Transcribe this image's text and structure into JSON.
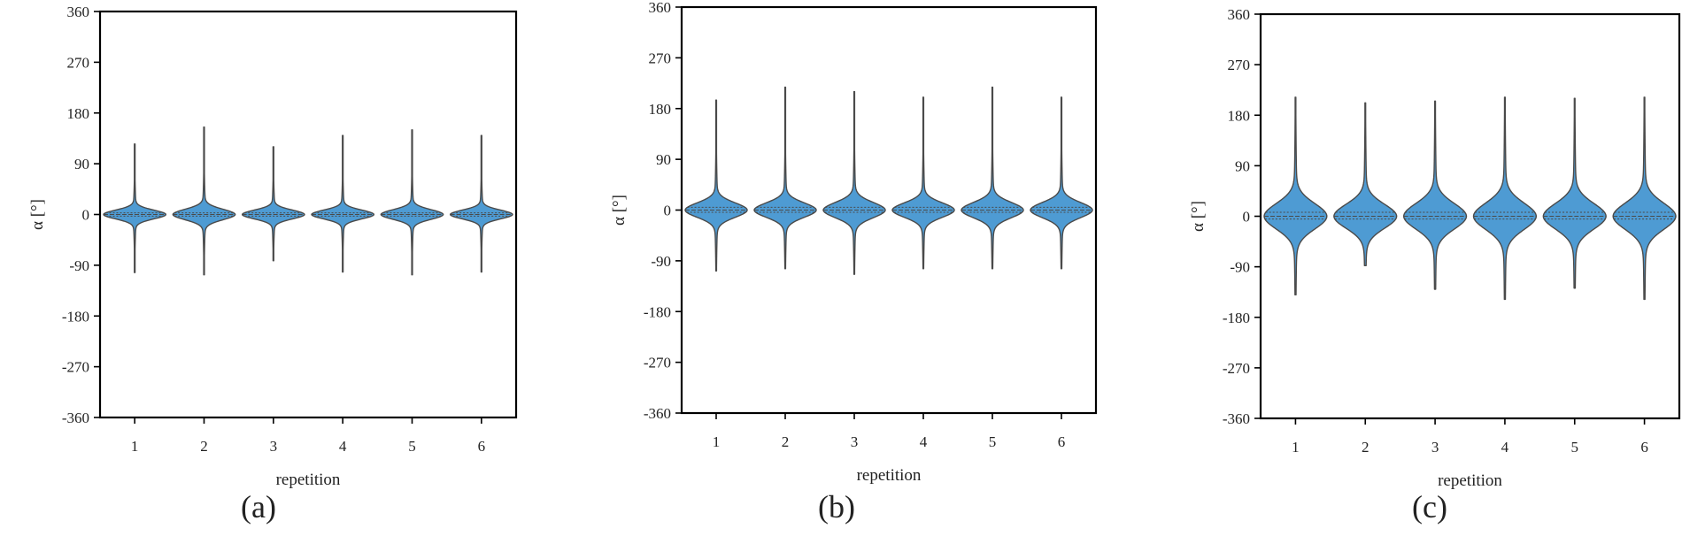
{
  "colors": {
    "violin_fill": "#4e9bd3",
    "violin_edge": "#4a4a4a",
    "axes": "#000000"
  },
  "chart_data": [
    {
      "type": "violin",
      "panel_label": "(a)",
      "xlabel": "repetition",
      "ylabel": "α [°]",
      "categories": [
        "1",
        "2",
        "3",
        "4",
        "5",
        "6"
      ],
      "yticks": [
        "-360",
        "-270",
        "-180",
        "-90",
        "0",
        "90",
        "180",
        "270",
        "360"
      ],
      "ylim": [
        -360,
        360
      ],
      "series": [
        {
          "category": "1",
          "min": -103,
          "max": 125,
          "median": 0,
          "q1": -3,
          "q3": 3,
          "spread": 11
        },
        {
          "category": "2",
          "min": -107,
          "max": 155,
          "median": 0,
          "q1": -3,
          "q3": 3,
          "spread": 13
        },
        {
          "category": "3",
          "min": -82,
          "max": 120,
          "median": 0,
          "q1": -3,
          "q3": 3,
          "spread": 11
        },
        {
          "category": "4",
          "min": -102,
          "max": 140,
          "median": 0,
          "q1": -3,
          "q3": 3,
          "spread": 11
        },
        {
          "category": "5",
          "min": -107,
          "max": 150,
          "median": 0,
          "q1": -3,
          "q3": 3,
          "spread": 12
        },
        {
          "category": "6",
          "min": -102,
          "max": 140,
          "median": 0,
          "q1": -3,
          "q3": 3,
          "spread": 11
        }
      ]
    },
    {
      "type": "violin",
      "panel_label": "(b)",
      "xlabel": "repetition",
      "ylabel": "α [°]",
      "categories": [
        "1",
        "2",
        "3",
        "4",
        "5",
        "6"
      ],
      "yticks": [
        "-360",
        "-270",
        "-180",
        "-90",
        "0",
        "90",
        "180",
        "270",
        "360"
      ],
      "ylim": [
        -360,
        360
      ],
      "series": [
        {
          "category": "1",
          "min": -108,
          "max": 195,
          "median": 0,
          "q1": -4,
          "q3": 5,
          "spread": 18
        },
        {
          "category": "2",
          "min": -104,
          "max": 218,
          "median": 0,
          "q1": -4,
          "q3": 5,
          "spread": 18
        },
        {
          "category": "3",
          "min": -114,
          "max": 210,
          "median": 0,
          "q1": -4,
          "q3": 5,
          "spread": 19
        },
        {
          "category": "4",
          "min": -104,
          "max": 200,
          "median": 0,
          "q1": -4,
          "q3": 5,
          "spread": 18
        },
        {
          "category": "5",
          "min": -104,
          "max": 218,
          "median": 0,
          "q1": -4,
          "q3": 5,
          "spread": 19
        },
        {
          "category": "6",
          "min": -104,
          "max": 200,
          "median": 0,
          "q1": -4,
          "q3": 5,
          "spread": 19
        }
      ]
    },
    {
      "type": "violin",
      "panel_label": "(c)",
      "xlabel": "repetition",
      "ylabel": "α [°]",
      "categories": [
        "1",
        "2",
        "3",
        "4",
        "5",
        "6"
      ],
      "yticks": [
        "-360",
        "-270",
        "-180",
        "-90",
        "0",
        "90",
        "180",
        "270",
        "360"
      ],
      "ylim": [
        -360,
        360
      ],
      "series": [
        {
          "category": "1",
          "min": -140,
          "max": 212,
          "median": 0,
          "q1": -5,
          "q3": 7,
          "spread": 32
        },
        {
          "category": "2",
          "min": -88,
          "max": 202,
          "median": 0,
          "q1": -5,
          "q3": 7,
          "spread": 30
        },
        {
          "category": "3",
          "min": -130,
          "max": 205,
          "median": 0,
          "q1": -5,
          "q3": 7,
          "spread": 32
        },
        {
          "category": "4",
          "min": -148,
          "max": 212,
          "median": 0,
          "q1": -5,
          "q3": 7,
          "spread": 33
        },
        {
          "category": "5",
          "min": -128,
          "max": 210,
          "median": 0,
          "q1": -5,
          "q3": 7,
          "spread": 32
        },
        {
          "category": "6",
          "min": -148,
          "max": 212,
          "median": 0,
          "q1": -5,
          "q3": 7,
          "spread": 33
        }
      ]
    }
  ]
}
